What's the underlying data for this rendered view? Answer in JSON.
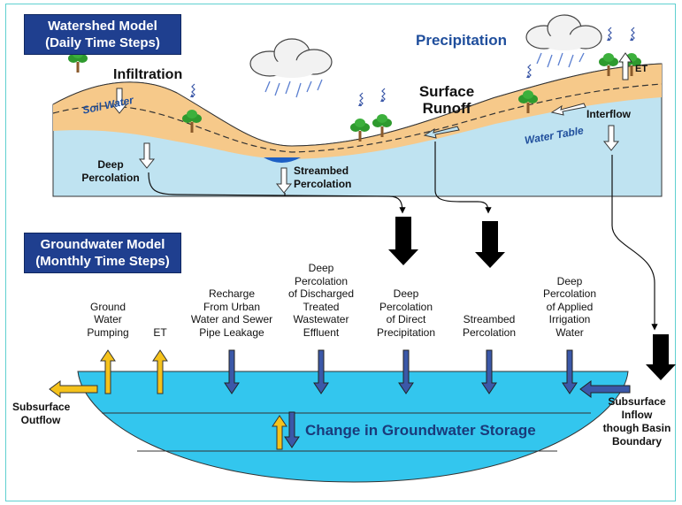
{
  "watershed": {
    "title_line1": "Watershed Model",
    "title_line2": "(Daily Time Steps)",
    "precipitation": "Precipitation",
    "infiltration": "Infiltration",
    "soil_water": "Soil Water",
    "surface_runoff_line1": "Surface",
    "surface_runoff_line2": "Runoff",
    "interflow": "Interflow",
    "et": "ET",
    "water_table": "Water Table",
    "deep_percolation_line1": "Deep",
    "deep_percolation_line2": "Percolation",
    "streambed_percolation_line1": "Streambed",
    "streambed_percolation_line2": "Percolation"
  },
  "groundwater": {
    "title_line1": "Groundwater Model",
    "title_line2": "(Monthly Time Steps)",
    "components": [
      {
        "lines": [
          "Ground",
          "Water",
          "Pumping"
        ]
      },
      {
        "lines": [
          "ET"
        ]
      },
      {
        "lines": [
          "Recharge",
          "From Urban",
          "Water and Sewer",
          "Pipe Leakage"
        ]
      },
      {
        "lines": [
          "Deep",
          "Percolation",
          "of Discharged",
          "Treated",
          "Wastewater",
          "Effluent"
        ]
      },
      {
        "lines": [
          "Deep",
          "Percolation",
          "of Direct",
          "Precipitation"
        ]
      },
      {
        "lines": [
          "Streambed",
          "Percolation"
        ]
      },
      {
        "lines": [
          "Deep",
          "Percolation",
          "of Applied",
          "Irrigation",
          "Water"
        ]
      }
    ],
    "subsurface_outflow_line1": "Subsurface",
    "subsurface_outflow_line2": "Outflow",
    "subsurface_inflow_lines": [
      "Subsurface",
      "Inflow",
      "though Basin",
      "Boundary"
    ],
    "change_in_storage": "Change in Groundwater Storage"
  },
  "colors": {
    "title_bg": "#1f3f8f",
    "soil": "#f6c98a",
    "groundwater_zone": "#bfe3f1",
    "aquifer": "#33c6ee",
    "outflow_arrow": "#f5c21b",
    "inflow_arrow": "#3b58a8",
    "big_arrow": "#000000",
    "label_blue": "#1f4e9c"
  }
}
